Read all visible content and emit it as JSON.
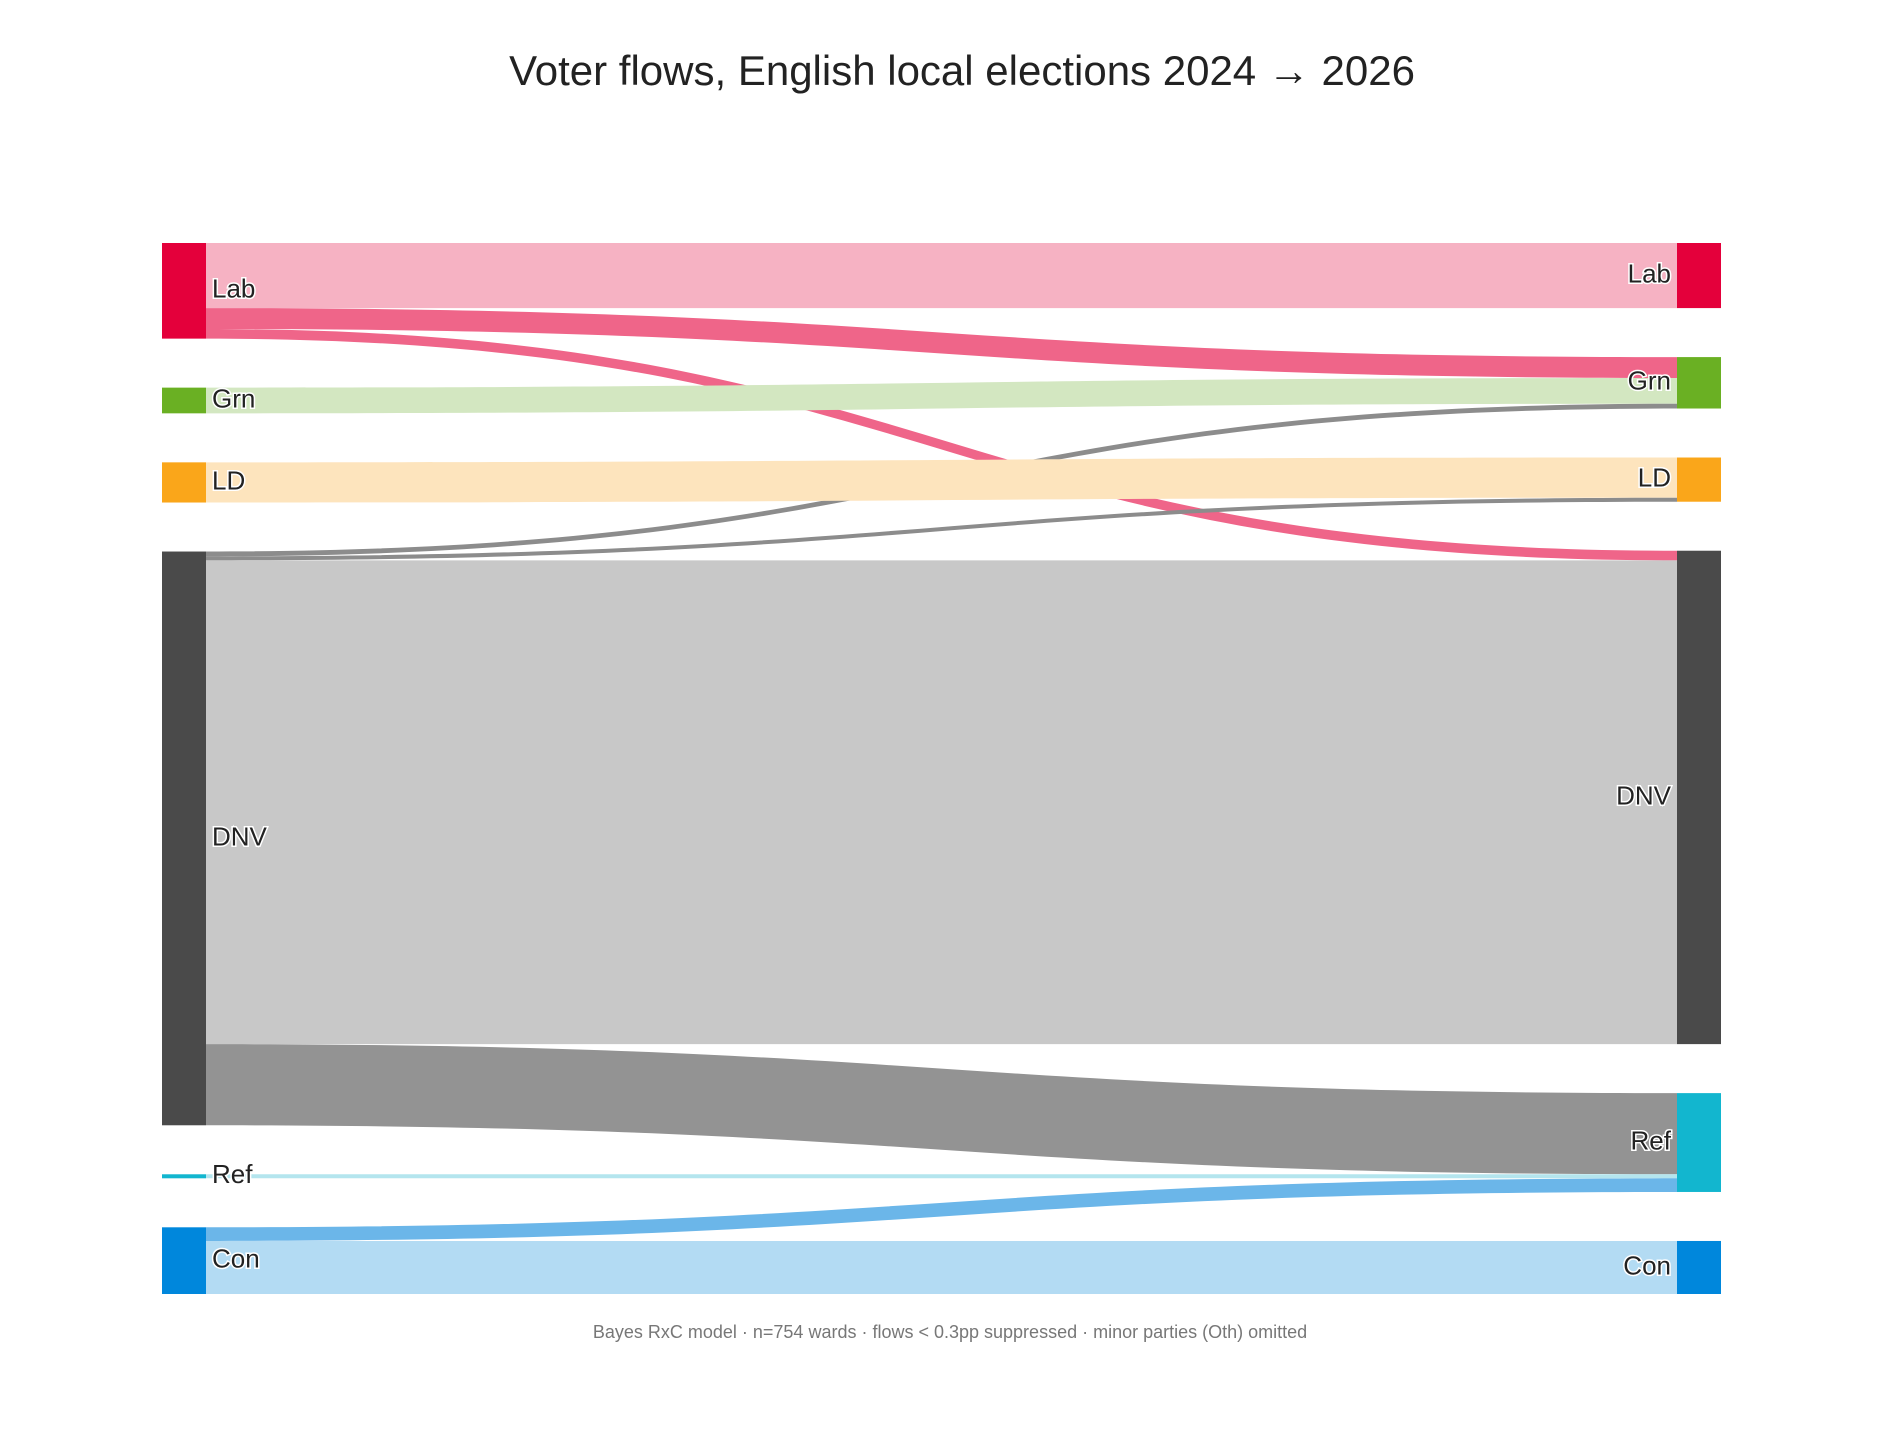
{
  "chart_data": {
    "type": "sankey",
    "title": "Voter flows, English local elections 2024 → 2026",
    "note": "Bayes RxC model · n=754 wards · flows < 0.3pp suppressed · minor parties (Oth) omitted",
    "sources": [
      {
        "label": "Lab",
        "color": "#e4003b"
      },
      {
        "label": "Grn",
        "color": "#6ab023"
      },
      {
        "label": "LD",
        "color": "#faa61a"
      },
      {
        "label": "DNV",
        "color": "#4a4a4a"
      },
      {
        "label": "Ref",
        "color": "#12b6cf"
      },
      {
        "label": "Con",
        "color": "#0087dc"
      }
    ],
    "targets": [
      {
        "label": "Lab",
        "color": "#e4003b"
      },
      {
        "label": "Grn",
        "color": "#6ab023"
      },
      {
        "label": "LD",
        "color": "#faa61a"
      },
      {
        "label": "DNV",
        "color": "#4a4a4a"
      },
      {
        "label": "Ref",
        "color": "#12b6cf"
      },
      {
        "label": "Con",
        "color": "#0087dc"
      }
    ],
    "links": [
      {
        "source": 0,
        "target": 0,
        "value": 8.1,
        "color": "#f6b2c3"
      },
      {
        "source": 0,
        "target": 1,
        "value": 2.6,
        "color": "#ef6589"
      },
      {
        "source": 0,
        "target": 3,
        "value": 1.2,
        "color": "#ef6589"
      },
      {
        "source": 1,
        "target": 1,
        "value": 3.2,
        "color": "#d3e7c1"
      },
      {
        "source": 3,
        "target": 1,
        "value": 0.6,
        "color": "#8c8c8c"
      },
      {
        "source": 2,
        "target": 2,
        "value": 5.0,
        "color": "#fde4bd"
      },
      {
        "source": 3,
        "target": 2,
        "value": 0.5,
        "color": "#8c8c8c"
      },
      {
        "source": 3,
        "target": 3,
        "value": 60.2,
        "color": "#c8c8c8"
      },
      {
        "source": 3,
        "target": 4,
        "value": 10.1,
        "color": "#939393"
      },
      {
        "source": 4,
        "target": 4,
        "value": 0.5,
        "color": "#b4e5ee"
      },
      {
        "source": 5,
        "target": 4,
        "value": 1.7,
        "color": "#6bb6e9"
      },
      {
        "source": 5,
        "target": 5,
        "value": 6.6,
        "color": "#b3dbf3"
      }
    ]
  }
}
